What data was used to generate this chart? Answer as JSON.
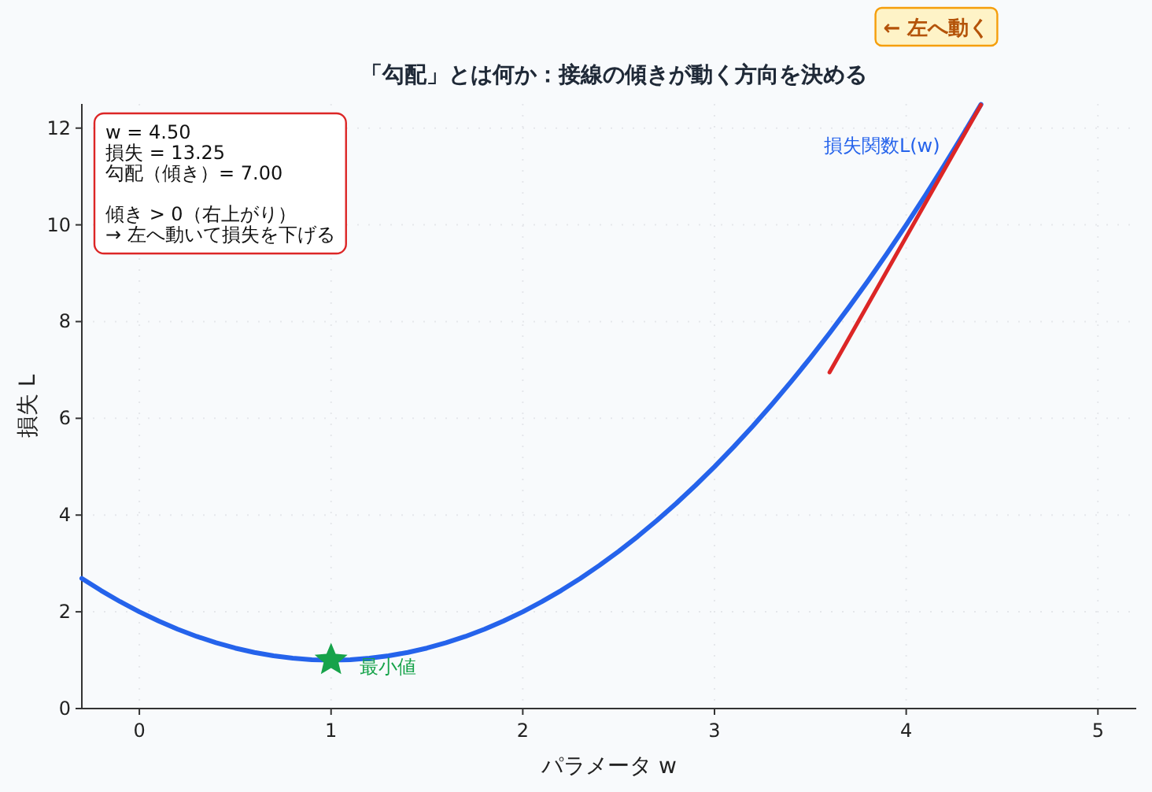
{
  "chart_data": {
    "type": "line",
    "title": "「勾配」とは何か：接線の傾きが動く方向を決める",
    "xlabel": "パラメータ w",
    "ylabel": "損失 L",
    "xlim": [
      -0.3,
      5.2
    ],
    "ylim": [
      0,
      12.5
    ],
    "xticks": [
      0,
      1,
      2,
      3,
      4,
      5
    ],
    "yticks": [
      0,
      2,
      4,
      6,
      8,
      10,
      12
    ],
    "grid": true,
    "annotations": [
      "w = 4.50\n損失 = 13.25\n勾配（傾き）= 7.00\n\n傾き > 0（右上がり）\n→ 左へ動いて損失を下げる",
      "← 左へ動く"
    ],
    "series": [
      {
        "name": "損失関数L(w)",
        "type": "line",
        "color": "#2563eb",
        "x": [
          -0.3,
          -0.2,
          -0.1,
          0,
          0.1,
          0.2,
          0.3,
          0.4,
          0.5,
          0.6,
          0.7,
          0.8,
          0.9,
          1.0,
          1.1,
          1.2,
          1.3,
          1.4,
          1.5,
          1.6,
          1.7,
          1.8,
          1.9,
          2.0,
          2.1,
          2.2,
          2.3,
          2.4,
          2.5,
          2.6,
          2.7,
          2.8,
          2.9,
          3.0,
          3.1,
          3.2,
          3.3,
          3.4,
          3.5,
          3.6,
          3.7,
          3.8,
          3.9,
          4.0,
          4.1,
          4.2,
          4.3,
          4.39
        ],
        "values": [
          2.69,
          2.44,
          2.21,
          2.0,
          1.81,
          1.64,
          1.49,
          1.36,
          1.25,
          1.16,
          1.09,
          1.04,
          1.01,
          1.0,
          1.01,
          1.04,
          1.09,
          1.16,
          1.25,
          1.36,
          1.49,
          1.64,
          1.81,
          2.0,
          2.21,
          2.44,
          2.69,
          2.96,
          3.25,
          3.56,
          3.89,
          4.24,
          4.61,
          5.0,
          5.41,
          5.84,
          6.29,
          6.76,
          7.25,
          7.76,
          8.29,
          8.84,
          9.41,
          10.0,
          10.61,
          11.24,
          11.89,
          12.49
        ]
      },
      {
        "type": "line",
        "color": "#dc2626",
        "x": [
          3.6,
          4.39
        ],
        "values": [
          6.95,
          12.48
        ]
      },
      {
        "name": "最小値",
        "type": "scatter",
        "marker": "star",
        "color": "#16a34a",
        "x": [
          1
        ],
        "values": [
          1
        ]
      }
    ]
  }
}
